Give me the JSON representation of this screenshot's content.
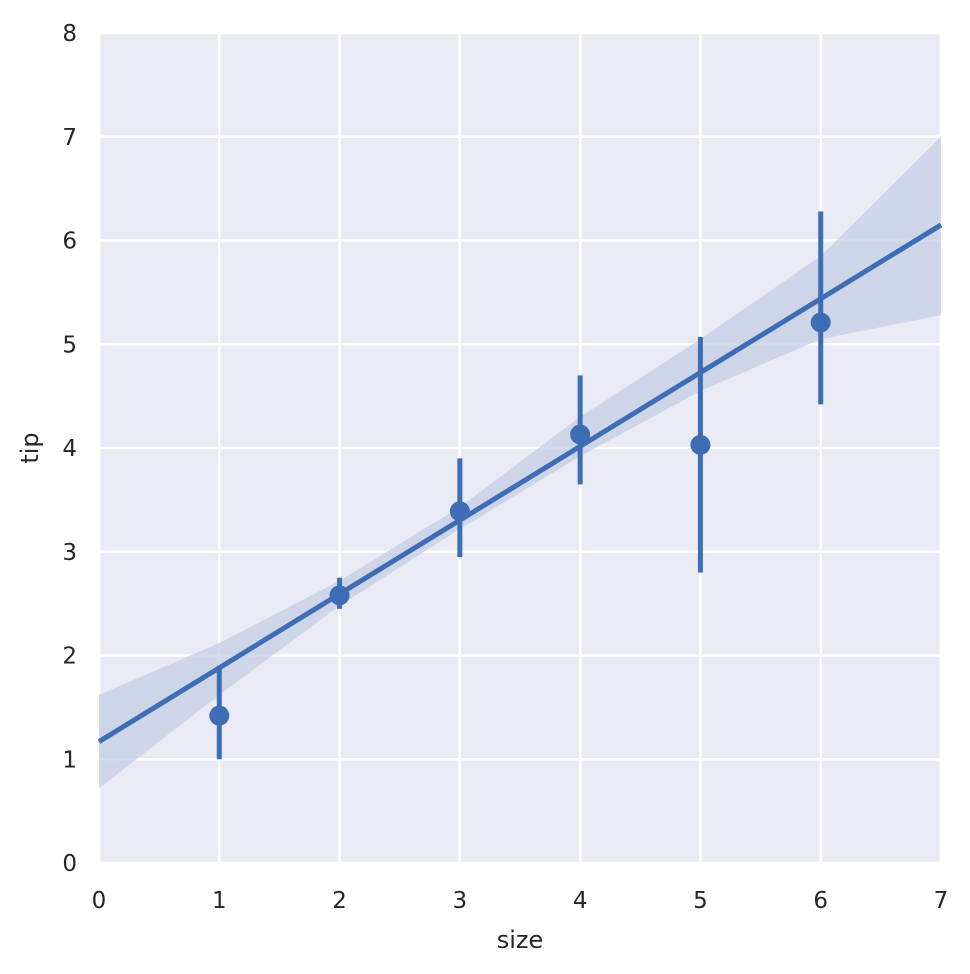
{
  "chart_data": {
    "type": "scatter",
    "style": "seaborn regplot with x_estimator (mean points with confidence-interval bars) and fitted regression line with shaded confidence band",
    "xlabel": "size",
    "ylabel": "tip",
    "xlim": [
      0,
      7
    ],
    "ylim": [
      0,
      8
    ],
    "xticks": [
      0,
      1,
      2,
      3,
      4,
      5,
      6,
      7
    ],
    "yticks": [
      0,
      1,
      2,
      3,
      4,
      5,
      6,
      7,
      8
    ],
    "grid": true,
    "background_color": "#e9eaf3",
    "grid_color": "#ffffff",
    "series_color": "#3f6db5",
    "band_color": "#c4cde6",
    "points": [
      {
        "x": 1,
        "y": 1.42,
        "ci_low": 1.0,
        "ci_high": 1.9
      },
      {
        "x": 2,
        "y": 2.58,
        "ci_low": 2.45,
        "ci_high": 2.75
      },
      {
        "x": 3,
        "y": 3.39,
        "ci_low": 2.95,
        "ci_high": 3.9
      },
      {
        "x": 4,
        "y": 4.13,
        "ci_low": 3.65,
        "ci_high": 4.7
      },
      {
        "x": 5,
        "y": 4.03,
        "ci_low": 2.8,
        "ci_high": 5.07
      },
      {
        "x": 6,
        "y": 5.21,
        "ci_low": 4.42,
        "ci_high": 6.28
      }
    ],
    "regression": {
      "x": [
        0,
        7
      ],
      "y": [
        1.17,
        6.15
      ],
      "band": [
        {
          "x": 0,
          "low": 0.72,
          "high": 1.62
        },
        {
          "x": 1,
          "low": 1.62,
          "high": 2.12
        },
        {
          "x": 2,
          "low": 2.48,
          "high": 2.72
        },
        {
          "x": 3,
          "low": 3.22,
          "high": 3.43
        },
        {
          "x": 4,
          "low": 3.92,
          "high": 4.3
        },
        {
          "x": 5,
          "low": 4.55,
          "high": 5.05
        },
        {
          "x": 6,
          "low": 5.05,
          "high": 5.85
        },
        {
          "x": 7,
          "low": 5.28,
          "high": 7.0
        }
      ]
    }
  }
}
